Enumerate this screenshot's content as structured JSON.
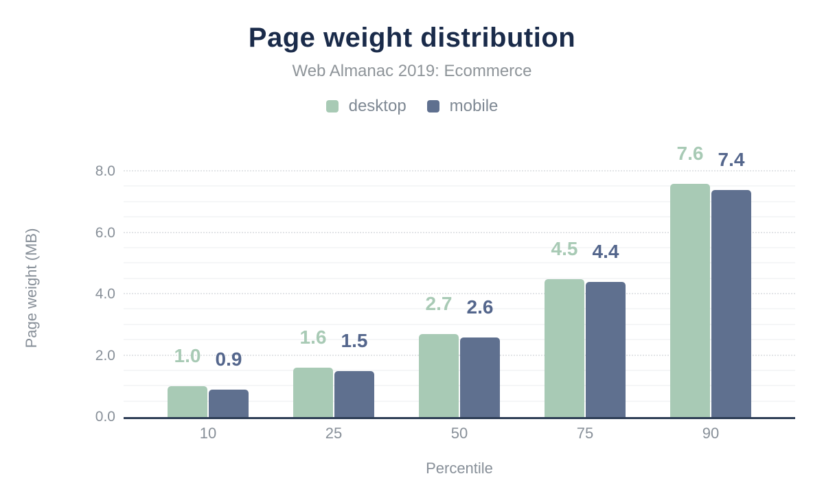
{
  "chart_data": {
    "type": "bar",
    "title": "Page weight distribution",
    "subtitle": "Web Almanac 2019: Ecommerce",
    "categories": [
      "10",
      "25",
      "50",
      "75",
      "90"
    ],
    "series": [
      {
        "name": "desktop",
        "color": "#a8cab5",
        "label_color": "#a8cab5",
        "values": [
          1.0,
          1.6,
          2.7,
          4.5,
          7.6
        ]
      },
      {
        "name": "mobile",
        "color": "#5f708f",
        "label_color": "#54668c",
        "values": [
          0.9,
          1.5,
          2.6,
          4.4,
          7.4
        ]
      }
    ],
    "xlabel": "Percentile",
    "ylabel": "Page weight (MB)",
    "ylim": [
      0,
      8
    ],
    "ytick_labels": [
      "0.0",
      "2.0",
      "4.0",
      "6.0",
      "8.0"
    ],
    "ytick_values": [
      0,
      2,
      4,
      6,
      8
    ],
    "minor_grid_step": 0.5,
    "grid": true,
    "legend_position": "top",
    "value_labels_shown": true,
    "value_label_format": "one_decimal"
  },
  "colors": {
    "title": "#1a2b4a",
    "subtitle": "#8e9499",
    "legend_label": "#7e8893",
    "tick_label": "#878f98",
    "axis_line": "#2d3d55",
    "grid_minor": "#f5f6f7",
    "grid_major": "#e2e4e7",
    "background": "#ffffff"
  }
}
